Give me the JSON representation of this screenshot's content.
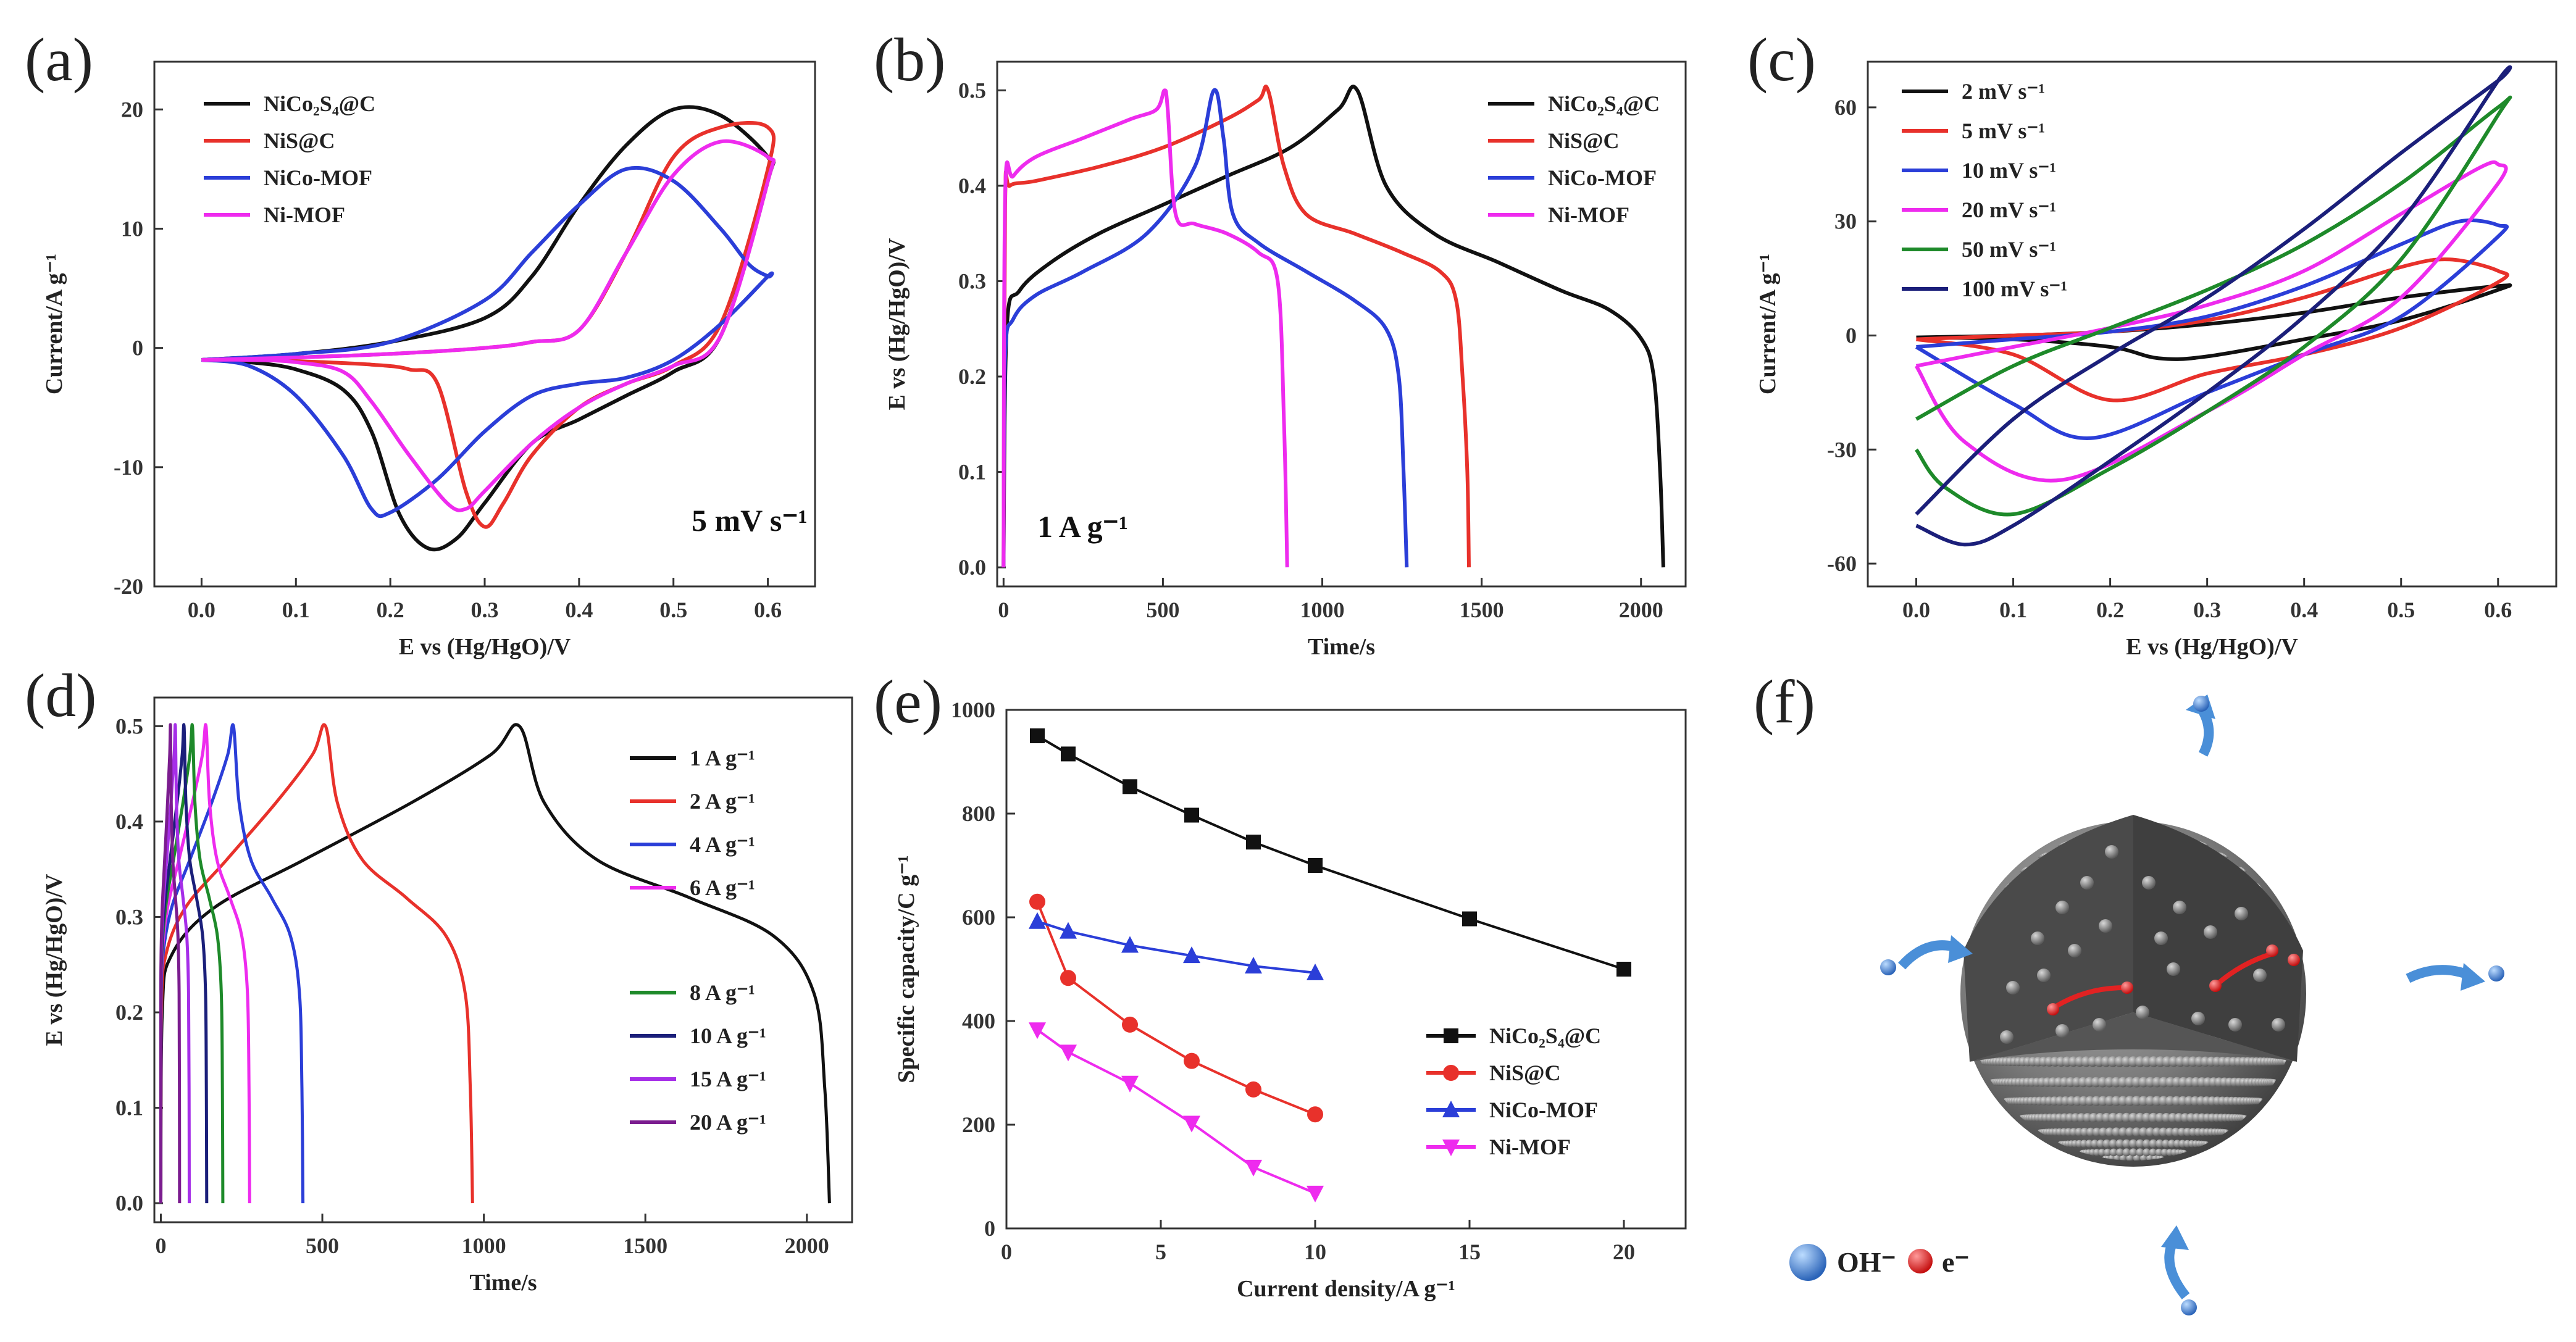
{
  "chart_data": [
    {
      "id": "a",
      "type": "line",
      "panel_label": "(a)",
      "xlabel": "E vs (Hg/HgO)/V",
      "ylabel": "Current/A g⁻¹",
      "xlim": [
        -0.05,
        0.65
      ],
      "ylim": [
        -20,
        24
      ],
      "xticks": [
        0.0,
        0.1,
        0.2,
        0.3,
        0.4,
        0.5,
        0.6
      ],
      "xtick_labels": [
        "0.0",
        "0.1",
        "0.2",
        "0.3",
        "0.4",
        "0.5",
        "0.6"
      ],
      "yticks": [
        -20,
        -10,
        0,
        10,
        20
      ],
      "ytick_labels": [
        "-20",
        "-10",
        "0",
        "10",
        "20"
      ],
      "annotation": "5 mV s⁻¹",
      "legend_position": "top-left",
      "series": [
        {
          "name": "NiCo₂S₄@C",
          "color": "#111111",
          "x": [
            0,
            0.1,
            0.2,
            0.3,
            0.35,
            0.4,
            0.45,
            0.5,
            0.55,
            0.6,
            0.6,
            0.55,
            0.5,
            0.45,
            0.4,
            0.35,
            0.3,
            0.27,
            0.24,
            0.21,
            0.18,
            0.15,
            0.1,
            0.05,
            0
          ],
          "y": [
            -1,
            -0.5,
            0.5,
            2.5,
            6,
            12,
            17,
            20,
            19.5,
            16,
            14,
            1,
            -2,
            -4,
            -6,
            -8,
            -13,
            -16,
            -16.8,
            -14,
            -7,
            -3.5,
            -1.8,
            -1.2,
            -1
          ]
        },
        {
          "name": "NiS@C",
          "color": "#e8312b",
          "x": [
            0,
            0.1,
            0.2,
            0.3,
            0.35,
            0.4,
            0.45,
            0.5,
            0.55,
            0.6,
            0.6,
            0.55,
            0.5,
            0.45,
            0.4,
            0.35,
            0.32,
            0.3,
            0.28,
            0.25,
            0.22,
            0.18,
            0.1,
            0.05,
            0
          ],
          "y": [
            -1,
            -0.8,
            -0.5,
            0,
            0.5,
            1.5,
            8,
            16,
            18.5,
            18.5,
            15,
            2,
            -1.5,
            -3,
            -5,
            -9,
            -13,
            -15,
            -12,
            -3,
            -1.8,
            -1.4,
            -1.1,
            -1,
            -1
          ]
        },
        {
          "name": "NiCo-MOF",
          "color": "#2b3ed8",
          "x": [
            0,
            0.1,
            0.2,
            0.3,
            0.35,
            0.4,
            0.45,
            0.5,
            0.55,
            0.58,
            0.6,
            0.6,
            0.55,
            0.5,
            0.45,
            0.4,
            0.35,
            0.3,
            0.25,
            0.2,
            0.18,
            0.15,
            0.1,
            0.05,
            0
          ],
          "y": [
            -1,
            -0.5,
            0.5,
            4,
            8,
            12,
            15,
            14,
            10,
            7,
            6,
            6,
            2,
            -1,
            -2.5,
            -3,
            -4,
            -7,
            -11,
            -13.8,
            -13.5,
            -9,
            -4,
            -1.5,
            -1
          ]
        },
        {
          "name": "Ni-MOF",
          "color": "#ee2bee",
          "x": [
            0,
            0.1,
            0.2,
            0.3,
            0.35,
            0.4,
            0.45,
            0.5,
            0.55,
            0.6,
            0.6,
            0.55,
            0.5,
            0.45,
            0.4,
            0.35,
            0.3,
            0.28,
            0.26,
            0.22,
            0.18,
            0.15,
            0.1,
            0.05,
            0
          ],
          "y": [
            -1,
            -0.8,
            -0.5,
            0,
            0.5,
            1.5,
            8,
            14.5,
            17.3,
            16,
            14,
            1,
            -1.5,
            -3,
            -5,
            -8,
            -12,
            -13.5,
            -13,
            -9,
            -4.5,
            -2,
            -1.2,
            -1,
            -1
          ]
        }
      ]
    },
    {
      "id": "b",
      "type": "line",
      "panel_label": "(b)",
      "xlabel": "Time/s",
      "ylabel": "E vs (Hg/HgO)/V",
      "xlim": [
        -20,
        2140
      ],
      "ylim": [
        -0.02,
        0.53
      ],
      "xticks": [
        0,
        500,
        1000,
        1500,
        2000
      ],
      "xtick_labels": [
        "0",
        "500",
        "1000",
        "1500",
        "2000"
      ],
      "yticks": [
        0.0,
        0.1,
        0.2,
        0.3,
        0.4,
        0.5
      ],
      "ytick_labels": [
        "0.0",
        "0.1",
        "0.2",
        "0.3",
        "0.4",
        "0.5"
      ],
      "annotation": "1 A g⁻¹",
      "legend_position": "top-right",
      "series": [
        {
          "name": "NiCo₂S₄@C",
          "color": "#111111",
          "x": [
            0,
            10,
            50,
            150,
            300,
            500,
            700,
            900,
            1050,
            1110,
            1200,
            1350,
            1550,
            1750,
            1900,
            2000,
            2040,
            2060,
            2070
          ],
          "y": [
            0,
            0.25,
            0.29,
            0.32,
            0.35,
            0.38,
            0.41,
            0.44,
            0.48,
            0.5,
            0.4,
            0.35,
            0.32,
            0.29,
            0.27,
            0.24,
            0.2,
            0.1,
            0
          ]
        },
        {
          "name": "NiS@C",
          "color": "#e8312b",
          "x": [
            0,
            5,
            20,
            100,
            300,
            500,
            700,
            800,
            830,
            880,
            950,
            1100,
            1250,
            1370,
            1420,
            1440,
            1455,
            1460
          ],
          "y": [
            0,
            0.38,
            0.4,
            0.405,
            0.42,
            0.44,
            0.47,
            0.49,
            0.5,
            0.42,
            0.37,
            0.35,
            0.33,
            0.31,
            0.28,
            0.2,
            0.1,
            0
          ]
        },
        {
          "name": "NiCo-MOF",
          "color": "#2b3ed8",
          "x": [
            0,
            5,
            30,
            100,
            250,
            450,
            600,
            660,
            690,
            720,
            800,
            950,
            1100,
            1200,
            1240,
            1255,
            1265
          ],
          "y": [
            0,
            0.22,
            0.26,
            0.285,
            0.31,
            0.35,
            0.42,
            0.5,
            0.45,
            0.37,
            0.34,
            0.31,
            0.28,
            0.25,
            0.2,
            0.1,
            0
          ]
        },
        {
          "name": "Ni-MOF",
          "color": "#ee2bee",
          "x": [
            0,
            5,
            30,
            100,
            250,
            400,
            480,
            505,
            515,
            540,
            600,
            700,
            800,
            860,
            880,
            890
          ],
          "y": [
            0,
            0.39,
            0.41,
            0.43,
            0.45,
            0.47,
            0.48,
            0.5,
            0.48,
            0.37,
            0.36,
            0.35,
            0.33,
            0.3,
            0.15,
            0
          ]
        }
      ]
    },
    {
      "id": "c",
      "type": "line",
      "panel_label": "(c)",
      "xlabel": "E vs (Hg/HgO)/V",
      "ylabel": "Current/A g⁻¹",
      "xlim": [
        -0.05,
        0.66
      ],
      "ylim": [
        -66,
        72
      ],
      "xticks": [
        0.0,
        0.1,
        0.2,
        0.3,
        0.4,
        0.5,
        0.6
      ],
      "xtick_labels": [
        "0.0",
        "0.1",
        "0.2",
        "0.3",
        "0.4",
        "0.5",
        "0.6"
      ],
      "yticks": [
        -60,
        -30,
        0,
        30,
        60
      ],
      "ytick_labels": [
        "-60",
        "-30",
        "0",
        "30",
        "60"
      ],
      "legend_position": "top-left",
      "series": [
        {
          "name": "2 mV s⁻¹",
          "color": "#111111",
          "x": [
            0,
            0.1,
            0.2,
            0.3,
            0.4,
            0.5,
            0.6,
            0.6,
            0.5,
            0.4,
            0.3,
            0.25,
            0.2,
            0.1,
            0
          ],
          "y": [
            -0.5,
            0,
            1,
            3,
            6,
            10,
            13,
            12,
            4,
            -1,
            -5.5,
            -6,
            -3,
            -1,
            -0.5
          ]
        },
        {
          "name": "5 mV s⁻¹",
          "color": "#e8312b",
          "x": [
            0,
            0.1,
            0.2,
            0.3,
            0.4,
            0.5,
            0.55,
            0.6,
            0.6,
            0.5,
            0.4,
            0.3,
            0.2,
            0.1,
            0
          ],
          "y": [
            -1,
            0,
            1,
            4,
            10,
            18,
            20,
            17,
            14,
            2,
            -5,
            -10,
            -17,
            -5,
            -1
          ]
        },
        {
          "name": "10 mV s⁻¹",
          "color": "#2b3ed8",
          "x": [
            0,
            0.1,
            0.2,
            0.3,
            0.4,
            0.5,
            0.56,
            0.6,
            0.6,
            0.5,
            0.4,
            0.3,
            0.18,
            0.1,
            0
          ],
          "y": [
            -3,
            -1,
            1,
            5,
            13,
            24,
            30,
            29,
            26,
            5,
            -5,
            -15,
            -27,
            -18,
            -3
          ]
        },
        {
          "name": "20 mV s⁻¹",
          "color": "#ee2bee",
          "x": [
            0,
            0.1,
            0.2,
            0.3,
            0.4,
            0.5,
            0.58,
            0.6,
            0.6,
            0.5,
            0.4,
            0.3,
            0.15,
            0.05,
            0
          ],
          "y": [
            -8,
            -3,
            2,
            8,
            17,
            32,
            44,
            45,
            40,
            10,
            -5,
            -20,
            -38,
            -28,
            -8
          ]
        },
        {
          "name": "50 mV s⁻¹",
          "color": "#1e8a2a",
          "x": [
            0,
            0.1,
            0.2,
            0.3,
            0.4,
            0.5,
            0.6,
            0.6,
            0.5,
            0.4,
            0.3,
            0.2,
            0.1,
            0.03,
            0
          ],
          "y": [
            -22,
            -8,
            2,
            12,
            24,
            40,
            60,
            58,
            20,
            -3,
            -20,
            -35,
            -47,
            -40,
            -30
          ]
        },
        {
          "name": "100 mV s⁻¹",
          "color": "#1b1f7a",
          "x": [
            0,
            0.1,
            0.2,
            0.3,
            0.4,
            0.5,
            0.6,
            0.6,
            0.5,
            0.4,
            0.3,
            0.2,
            0.1,
            0.05,
            0
          ],
          "y": [
            -47,
            -22,
            -5,
            10,
            28,
            48,
            67,
            67,
            30,
            5,
            -15,
            -33,
            -50,
            -55,
            -50
          ]
        }
      ]
    },
    {
      "id": "d",
      "type": "line",
      "panel_label": "(d)",
      "xlabel": "Time/s",
      "ylabel": "E vs (Hg/HgO)/V",
      "xlim": [
        -20,
        2140
      ],
      "ylim": [
        -0.02,
        0.53
      ],
      "xticks": [
        0,
        500,
        1000,
        1500,
        2000
      ],
      "xtick_labels": [
        "0",
        "500",
        "1000",
        "1500",
        "2000"
      ],
      "yticks": [
        0.0,
        0.1,
        0.2,
        0.3,
        0.4,
        0.5
      ],
      "ytick_labels": [
        "0.0",
        "0.1",
        "0.2",
        "0.3",
        "0.4",
        "0.5"
      ],
      "legend_position": "right",
      "series": [
        {
          "name": "1 A g⁻¹",
          "color": "#111111",
          "t_peak": 1110,
          "t_end": 2070
        },
        {
          "name": "2 A g⁻¹",
          "color": "#e8312b",
          "t_peak": 510,
          "t_end": 965
        },
        {
          "name": "4 A g⁻¹",
          "color": "#2b3ed8",
          "t_peak": 225,
          "t_end": 440
        },
        {
          "name": "6 A g⁻¹",
          "color": "#ee2bee",
          "t_peak": 140,
          "t_end": 275
        },
        {
          "name": "8 A g⁻¹",
          "color": "#1e8a2a",
          "t_peak": 98,
          "t_end": 192
        },
        {
          "name": "10 A g⁻¹",
          "color": "#1b1f7a",
          "t_peak": 72,
          "t_end": 142
        },
        {
          "name": "15 A g⁻¹",
          "color": "#a62ee8",
          "t_peak": 45,
          "t_end": 88
        },
        {
          "name": "20 A g⁻¹",
          "color": "#7b1c8f",
          "t_peak": 30,
          "t_end": 58
        }
      ]
    },
    {
      "id": "e",
      "type": "line",
      "panel_label": "(e)",
      "xlabel": "Current density/A g⁻¹",
      "ylabel": "Specific capacity/C g⁻¹",
      "xlim": [
        0,
        22
      ],
      "ylim": [
        0,
        1000
      ],
      "xticks": [
        0,
        5,
        10,
        15,
        20
      ],
      "xtick_labels": [
        "0",
        "5",
        "10",
        "15",
        "20"
      ],
      "yticks": [
        0,
        200,
        400,
        600,
        800,
        1000
      ],
      "ytick_labels": [
        "0",
        "200",
        "400",
        "600",
        "800",
        "1000"
      ],
      "legend_position": "bottom-right",
      "series": [
        {
          "name": "NiCo₂S₄@C",
          "color": "#111111",
          "marker": "square",
          "x": [
            1,
            2,
            4,
            6,
            8,
            10,
            15,
            20
          ],
          "y": [
            950,
            915,
            852,
            797,
            745,
            700,
            597,
            500
          ]
        },
        {
          "name": "NiS@C",
          "color": "#e8312b",
          "marker": "circle",
          "x": [
            1,
            2,
            4,
            6,
            8,
            10
          ],
          "y": [
            630,
            483,
            393,
            323,
            268,
            220
          ]
        },
        {
          "name": "NiCo-MOF",
          "color": "#2b3ed8",
          "marker": "triangle-up",
          "x": [
            1,
            2,
            4,
            6,
            8,
            10
          ],
          "y": [
            592,
            573,
            546,
            526,
            506,
            493
          ]
        },
        {
          "name": "Ni-MOF",
          "color": "#ee2bee",
          "marker": "triangle-down",
          "x": [
            1,
            2,
            4,
            6,
            8,
            10
          ],
          "y": [
            383,
            340,
            280,
            203,
            118,
            68
          ]
        }
      ]
    }
  ],
  "schematic": {
    "panel_label": "(f)",
    "legend_oh": "OH⁻",
    "legend_e": "e⁻",
    "colors": {
      "sphere": "#6e6e6e",
      "ion": "#3b7fd6",
      "electron": "#e22222",
      "arrow": "#4a8fd8"
    }
  }
}
